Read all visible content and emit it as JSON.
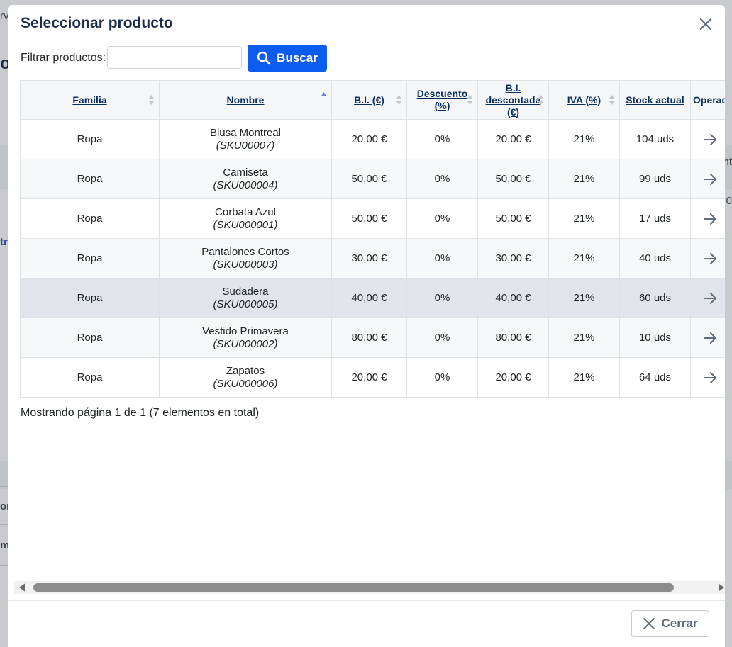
{
  "background": {
    "fragments_left": [
      "rv",
      "ot",
      "tr",
      "or",
      "m"
    ],
    "fragments_right": [
      "nt",
      "0"
    ]
  },
  "modal": {
    "title": "Seleccionar producto",
    "filter": {
      "label": "Filtrar productos:",
      "value": "",
      "button_label": "Buscar"
    },
    "table": {
      "columns": [
        {
          "label": "Familia",
          "sort": "none"
        },
        {
          "label": "Nombre",
          "sort": "asc"
        },
        {
          "label": "B.I. (€)",
          "sort": "none"
        },
        {
          "label": "Descuento (%)",
          "sort": "none"
        },
        {
          "label": "B.I. descontada (€)",
          "sort": "none"
        },
        {
          "label": "IVA (%)",
          "sort": "none"
        },
        {
          "label": "Stock actual",
          "sort": "none"
        },
        {
          "label": "Operac",
          "sort": "none"
        }
      ],
      "rows": [
        {
          "familia": "Ropa",
          "nombre": "Blusa Montreal",
          "sku": "(SKU00007)",
          "bi": "20,00 €",
          "descuento": "0%",
          "bi_desc": "20,00 €",
          "iva": "21%",
          "stock": "104 uds"
        },
        {
          "familia": "Ropa",
          "nombre": "Camiseta",
          "sku": "(SKU000004)",
          "bi": "50,00 €",
          "descuento": "0%",
          "bi_desc": "50,00 €",
          "iva": "21%",
          "stock": "99 uds"
        },
        {
          "familia": "Ropa",
          "nombre": "Corbata Azul",
          "sku": "(SKU000001)",
          "bi": "50,00 €",
          "descuento": "0%",
          "bi_desc": "50,00 €",
          "iva": "21%",
          "stock": "17 uds"
        },
        {
          "familia": "Ropa",
          "nombre": "Pantalones Cortos",
          "sku": "(SKU000003)",
          "bi": "30,00 €",
          "descuento": "0%",
          "bi_desc": "30,00 €",
          "iva": "21%",
          "stock": "40 uds"
        },
        {
          "familia": "Ropa",
          "nombre": "Sudadera",
          "sku": "(SKU000005)",
          "bi": "40,00 €",
          "descuento": "0%",
          "bi_desc": "40,00 €",
          "iva": "21%",
          "stock": "60 uds",
          "highlighted": true
        },
        {
          "familia": "Ropa",
          "nombre": "Vestido Primavera",
          "sku": "(SKU000002)",
          "bi": "80,00 €",
          "descuento": "0%",
          "bi_desc": "80,00 €",
          "iva": "21%",
          "stock": "10 uds"
        },
        {
          "familia": "Ropa",
          "nombre": "Zapatos",
          "sku": "(SKU000006)",
          "bi": "20,00 €",
          "descuento": "0%",
          "bi_desc": "20,00 €",
          "iva": "21%",
          "stock": "64 uds"
        }
      ],
      "row_action_icon": "arrow-right-icon"
    },
    "pagination_text": "Mostrando página 1 de 1 (7 elementos en total)",
    "close_button_label": "Cerrar"
  },
  "colors": {
    "primary": "#0d5cf0",
    "title": "#1a2e4c",
    "header_link": "#0a2f5e",
    "highlight_row": "#e1e5eb",
    "sort_active": "#6f7fdc"
  }
}
